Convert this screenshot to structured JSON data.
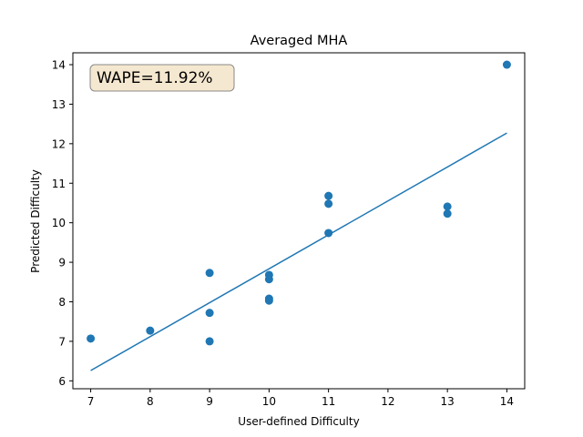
{
  "chart_data": {
    "type": "scatter",
    "title": "Averaged MHA",
    "xlabel": "User-defined Difficulty",
    "ylabel": "Predicted Difficulty",
    "xlim": [
      6.7,
      14.3
    ],
    "ylim": [
      5.8,
      14.3
    ],
    "xticks": [
      7,
      8,
      9,
      10,
      11,
      12,
      13,
      14
    ],
    "yticks": [
      6,
      7,
      8,
      9,
      10,
      11,
      12,
      13,
      14
    ],
    "grid": false,
    "point_color": "#1f77b4",
    "line_color": "#1f77b4",
    "points": [
      {
        "x": 7,
        "y": 7.07
      },
      {
        "x": 8,
        "y": 7.27
      },
      {
        "x": 9,
        "y": 8.73
      },
      {
        "x": 9,
        "y": 7.72
      },
      {
        "x": 9,
        "y": 7.0
      },
      {
        "x": 10,
        "y": 8.68
      },
      {
        "x": 10,
        "y": 8.57
      },
      {
        "x": 10,
        "y": 8.08
      },
      {
        "x": 10,
        "y": 8.03
      },
      {
        "x": 11,
        "y": 10.68
      },
      {
        "x": 11,
        "y": 10.48
      },
      {
        "x": 11,
        "y": 9.74
      },
      {
        "x": 13,
        "y": 10.41
      },
      {
        "x": 13,
        "y": 10.23
      },
      {
        "x": 14,
        "y": 14.0
      }
    ],
    "fit_line": {
      "x": [
        7,
        14
      ],
      "y": [
        6.26,
        12.27
      ]
    },
    "annotation": {
      "text": "WAPE=11.92%",
      "location": "top-left",
      "box_face": "#f5e8d0",
      "box_edge": "#888888"
    }
  }
}
